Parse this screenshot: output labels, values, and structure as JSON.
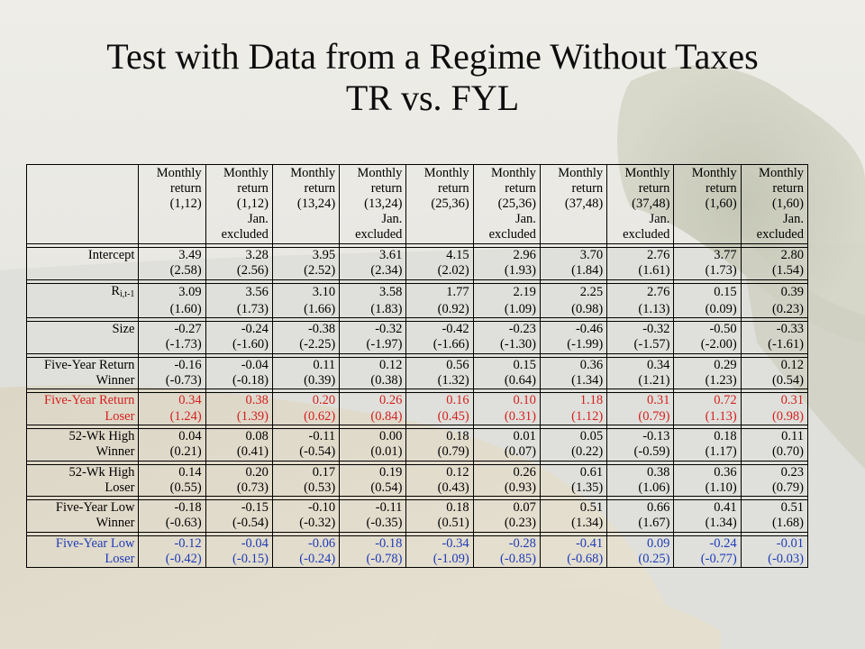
{
  "title": {
    "line1": "Test with Data from a Regime Without Taxes",
    "line2": "TR vs. FYL"
  },
  "columns": [
    {
      "line1": "Monthly",
      "line2": "return",
      "line3": "(1,12)",
      "line4": "",
      "line5": ""
    },
    {
      "line1": "Monthly",
      "line2": "return",
      "line3": "(1,12)",
      "line4": "Jan.",
      "line5": "excluded"
    },
    {
      "line1": "Monthly",
      "line2": "return",
      "line3": "(13,24)",
      "line4": "",
      "line5": ""
    },
    {
      "line1": "Monthly",
      "line2": "return",
      "line3": "(13,24)",
      "line4": "Jan.",
      "line5": "excluded"
    },
    {
      "line1": "Monthly",
      "line2": "return",
      "line3": "(25,36)",
      "line4": "",
      "line5": ""
    },
    {
      "line1": "Monthly",
      "line2": "return",
      "line3": "(25,36)",
      "line4": "Jan.",
      "line5": "excluded"
    },
    {
      "line1": "Monthly",
      "line2": "return",
      "line3": "(37,48)",
      "line4": "",
      "line5": ""
    },
    {
      "line1": "Monthly",
      "line2": "return",
      "line3": "(37,48)",
      "line4": "Jan.",
      "line5": "excluded"
    },
    {
      "line1": "Monthly",
      "line2": "return",
      "line3": "(1,60)",
      "line4": "",
      "line5": ""
    },
    {
      "line1": "Monthly",
      "line2": "return",
      "line3": "(1,60)",
      "line4": "Jan.",
      "line5": "excluded"
    }
  ],
  "rows": [
    {
      "label1": "Intercept",
      "label2": "",
      "color": "#000000",
      "coef": [
        "3.49",
        "3.28",
        "3.95",
        "3.61",
        "4.15",
        "2.96",
        "3.70",
        "2.76",
        "3.77",
        "2.80"
      ],
      "t": [
        "(2.58)",
        "(2.56)",
        "(2.52)",
        "(2.34)",
        "(2.02)",
        "(1.93)",
        "(1.84)",
        "(1.61)",
        "(1.73)",
        "(1.54)"
      ]
    },
    {
      "label1": "R",
      "label1_sub": "i,t-1",
      "label2": "",
      "color": "#000000",
      "coef": [
        "3.09",
        "3.56",
        "3.10",
        "3.58",
        "1.77",
        "2.19",
        "2.25",
        "2.76",
        "0.15",
        "0.39"
      ],
      "t": [
        "(1.60)",
        "(1.73)",
        "(1.66)",
        "(1.83)",
        "(0.92)",
        "(1.09)",
        "(0.98)",
        "(1.13)",
        "(0.09)",
        "(0.23)"
      ]
    },
    {
      "label1": "Size",
      "label2": "",
      "color": "#000000",
      "coef": [
        "-0.27",
        "-0.24",
        "-0.38",
        "-0.32",
        "-0.42",
        "-0.23",
        "-0.46",
        "-0.32",
        "-0.50",
        "-0.33"
      ],
      "t": [
        "(-1.73)",
        "(-1.60)",
        "(-2.25)",
        "(-1.97)",
        "(-1.66)",
        "(-1.30)",
        "(-1.99)",
        "(-1.57)",
        "(-2.00)",
        "(-1.61)"
      ]
    },
    {
      "label1": "Five-Year Return",
      "label2": "Winner",
      "color": "#000000",
      "coef": [
        "-0.16",
        "-0.04",
        "0.11",
        "0.12",
        "0.56",
        "0.15",
        "0.36",
        "0.34",
        "0.29",
        "0.12"
      ],
      "t": [
        "(-0.73)",
        "(-0.18)",
        "(0.39)",
        "(0.38)",
        "(1.32)",
        "(0.64)",
        "(1.34)",
        "(1.21)",
        "(1.23)",
        "(0.54)"
      ]
    },
    {
      "label1": "Five-Year Return",
      "label2": "Loser",
      "color": "#d42020",
      "coef": [
        "0.34",
        "0.38",
        "0.20",
        "0.26",
        "0.16",
        "0.10",
        "1.18",
        "0.31",
        "0.72",
        "0.31"
      ],
      "t": [
        "(1.24)",
        "(1.39)",
        "(0.62)",
        "(0.84)",
        "(0.45)",
        "(0.31)",
        "(1.12)",
        "(0.79)",
        "(1.13)",
        "(0.98)"
      ]
    },
    {
      "label1": "52-Wk High",
      "label2": "Winner",
      "color": "#000000",
      "coef": [
        "0.04",
        "0.08",
        "-0.11",
        "0.00",
        "0.18",
        "0.01",
        "0.05",
        "-0.13",
        "0.18",
        "0.11"
      ],
      "t": [
        "(0.21)",
        "(0.41)",
        "(-0.54)",
        "(0.01)",
        "(0.79)",
        "(0.07)",
        "(0.22)",
        "(-0.59)",
        "(1.17)",
        "(0.70)"
      ]
    },
    {
      "label1": "52-Wk High",
      "label2": "Loser",
      "color": "#000000",
      "coef": [
        "0.14",
        "0.20",
        "0.17",
        "0.19",
        "0.12",
        "0.26",
        "0.61",
        "0.38",
        "0.36",
        "0.23"
      ],
      "t": [
        "(0.55)",
        "(0.73)",
        "(0.53)",
        "(0.54)",
        "(0.43)",
        "(0.93)",
        "(1.35)",
        "(1.06)",
        "(1.10)",
        "(0.79)"
      ]
    },
    {
      "label1": "Five-Year Low",
      "label2": "Winner",
      "color": "#000000",
      "coef": [
        "-0.18",
        "-0.15",
        "-0.10",
        "-0.11",
        "0.18",
        "0.07",
        "0.51",
        "0.66",
        "0.41",
        "0.51"
      ],
      "t": [
        "(-0.63)",
        "(-0.54)",
        "(-0.32)",
        "(-0.35)",
        "(0.51)",
        "(0.23)",
        "(1.34)",
        "(1.67)",
        "(1.34)",
        "(1.68)"
      ]
    },
    {
      "label1": "Five-Year Low",
      "label2": "Loser",
      "color": "#1f3bb8",
      "coef": [
        "-0.12",
        "-0.04",
        "-0.06",
        "-0.18",
        "-0.34",
        "-0.28",
        "-0.41",
        "0.09",
        "-0.24",
        "-0.01"
      ],
      "t": [
        "(-0.42)",
        "(-0.15)",
        "(-0.24)",
        "(-0.78)",
        "(-1.09)",
        "(-0.85)",
        "(-0.68)",
        "(0.25)",
        "(-0.77)",
        "(-0.03)"
      ]
    }
  ]
}
